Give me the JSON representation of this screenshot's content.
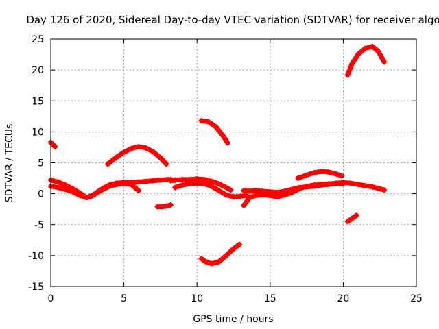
{
  "chart_data": {
    "type": "scatter",
    "title": "Day 126 of 2020, Sidereal Day-to-day VTEC variation (SDTVAR) for receiver algo",
    "xlabel": "GPS time / hours",
    "ylabel": "SDTVAR / TECUs",
    "xlim": [
      0,
      25
    ],
    "ylim": [
      -15,
      25
    ],
    "xticks": [
      0,
      5,
      10,
      15,
      20,
      25
    ],
    "yticks": [
      -15,
      -10,
      -5,
      0,
      5,
      10,
      15,
      20,
      25
    ],
    "grid": true,
    "marker": "plus",
    "color": "#ff0000",
    "series": [
      {
        "name": "seg-a",
        "x": [
          0.0,
          0.1,
          0.2,
          0.3
        ],
        "y": [
          8.3,
          8.1,
          7.8,
          7.6
        ]
      },
      {
        "name": "seg-b",
        "x": [
          0.0,
          0.5,
          1.0,
          1.5,
          2.0,
          2.4,
          2.8,
          3.2,
          3.6,
          4.0,
          4.5,
          5.0,
          5.5,
          6.0,
          6.5,
          7.0,
          7.5,
          8.0,
          8.2
        ],
        "y": [
          2.2,
          1.9,
          1.4,
          0.8,
          0.1,
          -0.6,
          -0.4,
          0.3,
          0.9,
          1.4,
          1.7,
          1.8,
          1.8,
          1.9,
          2.0,
          2.1,
          2.2,
          2.3,
          2.3
        ]
      },
      {
        "name": "seg-c",
        "x": [
          0.0,
          0.5,
          1.0,
          1.5,
          2.0,
          2.5,
          3.0,
          3.5,
          4.0,
          4.5,
          5.0,
          5.5,
          6.0
        ],
        "y": [
          1.2,
          1.0,
          0.7,
          0.3,
          -0.3,
          -0.6,
          -0.1,
          0.6,
          1.2,
          1.5,
          1.6,
          1.5,
          0.5
        ]
      },
      {
        "name": "seg-d",
        "x": [
          3.9,
          4.5,
          5.0,
          5.5,
          6.0,
          6.5,
          7.0,
          7.5,
          7.9
        ],
        "y": [
          4.8,
          5.9,
          6.7,
          7.3,
          7.6,
          7.4,
          6.8,
          5.8,
          4.8
        ]
      },
      {
        "name": "seg-e",
        "x": [
          7.3,
          7.6,
          7.9,
          8.2
        ],
        "y": [
          -2.1,
          -2.1,
          -2.0,
          -1.8
        ]
      },
      {
        "name": "seg-f",
        "x": [
          8.2,
          8.5,
          9.0,
          9.5,
          10.0,
          10.5,
          11.0,
          11.5,
          12.0,
          12.3
        ],
        "y": [
          2.1,
          2.2,
          2.3,
          2.3,
          2.4,
          2.3,
          2.0,
          1.6,
          1.0,
          0.6
        ]
      },
      {
        "name": "seg-g",
        "x": [
          8.5,
          9.0,
          9.5,
          10.0,
          10.5,
          11.0,
          11.5,
          12.0,
          12.5,
          13.0,
          13.4
        ],
        "y": [
          1.0,
          1.4,
          1.6,
          1.7,
          1.6,
          1.2,
          0.5,
          -0.2,
          -0.5,
          -0.4,
          -0.3
        ]
      },
      {
        "name": "seg-h",
        "x": [
          10.3,
          10.8,
          11.3,
          11.8,
          12.1
        ],
        "y": [
          11.8,
          11.6,
          10.8,
          9.3,
          8.2
        ]
      },
      {
        "name": "seg-i",
        "x": [
          10.3,
          10.6,
          11.0,
          11.5,
          12.0,
          12.5,
          12.9
        ],
        "y": [
          -10.5,
          -11.0,
          -11.3,
          -11.0,
          -10.0,
          -8.9,
          -8.2
        ]
      },
      {
        "name": "seg-j",
        "x": [
          13.2,
          13.6,
          14.0,
          14.5,
          15.0,
          15.5,
          16.0,
          16.5,
          17.0,
          17.5,
          18.0,
          18.5,
          19.0,
          19.5,
          20.0,
          20.5,
          21.0,
          21.5,
          22.0,
          22.5,
          22.8
        ],
        "y": [
          -1.9,
          -0.6,
          -0.3,
          -0.2,
          -0.3,
          -0.5,
          -0.2,
          0.2,
          0.8,
          1.2,
          1.4,
          1.5,
          1.6,
          1.7,
          1.8,
          1.7,
          1.5,
          1.3,
          1.1,
          0.8,
          0.6
        ]
      },
      {
        "name": "seg-k",
        "x": [
          13.2,
          13.6,
          14.0,
          14.5,
          15.0,
          15.5,
          16.0,
          16.5,
          17.0,
          17.5,
          18.0,
          18.5,
          19.0,
          19.5,
          20.0
        ],
        "y": [
          0.5,
          0.4,
          0.5,
          0.4,
          0.3,
          0.2,
          0.4,
          0.7,
          1.0,
          1.1,
          1.2,
          1.4,
          1.5,
          1.6,
          1.6
        ]
      },
      {
        "name": "seg-l",
        "x": [
          16.9,
          17.5,
          18.0,
          18.5,
          19.0,
          19.5,
          19.9
        ],
        "y": [
          2.5,
          3.0,
          3.4,
          3.6,
          3.5,
          3.2,
          2.9
        ]
      },
      {
        "name": "seg-m",
        "x": [
          20.3,
          20.6,
          20.9
        ],
        "y": [
          -4.5,
          -4.0,
          -3.5
        ]
      },
      {
        "name": "seg-n",
        "x": [
          20.3,
          20.6,
          21.0,
          21.5,
          22.0,
          22.4,
          22.8
        ],
        "y": [
          19.2,
          21.0,
          22.5,
          23.5,
          23.8,
          23.0,
          21.3
        ]
      }
    ]
  }
}
